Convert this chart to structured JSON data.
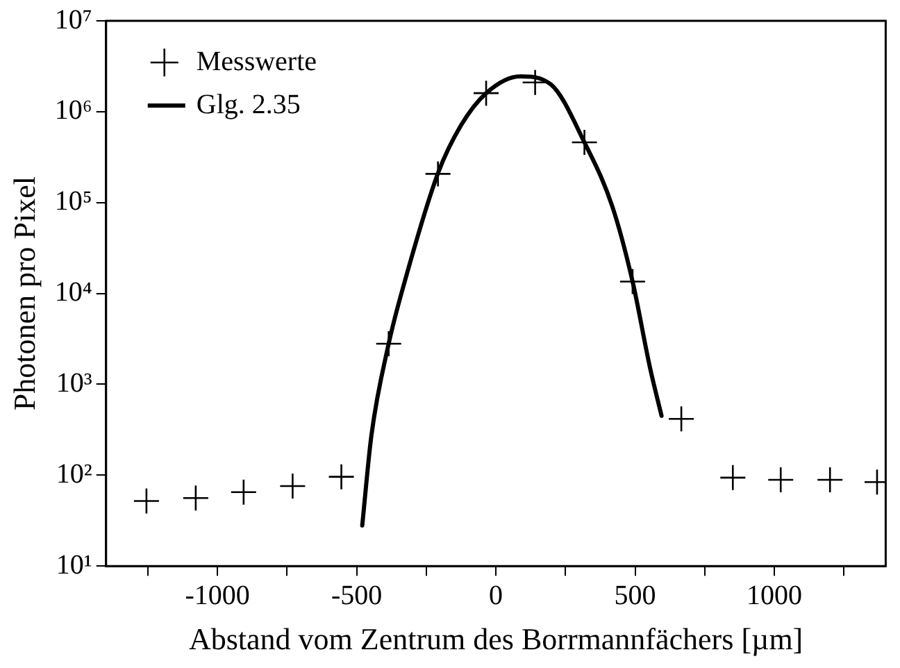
{
  "chart_data": {
    "type": "scatter",
    "xlabel": "Abstand vom Zentrum des Borrmannfächers [µm]",
    "ylabel": "Photonen pro Pixel",
    "series": [
      {
        "name": "Messwerte",
        "color": "#000000",
        "marker": "cross",
        "x": [
          -1255,
          -1078,
          -906,
          -730,
          -555,
          -385,
          -208,
          -35,
          141,
          318,
          491,
          666,
          851,
          1023,
          1200,
          1369
        ],
        "values": [
          52,
          56,
          65,
          76,
          96,
          2800,
          207000,
          1600000,
          2100000,
          460000,
          13500,
          417,
          94,
          89,
          89,
          84
        ]
      },
      {
        "name": "Glg. 2.35",
        "type": "line",
        "color": "#000000",
        "marker": "none",
        "line_style": "solid",
        "x": [
          -480,
          -447,
          -385,
          -329,
          -208,
          -125,
          -35,
          87,
          197,
          318,
          418,
          491,
          554,
          595
        ],
        "values": [
          28,
          275,
          2800,
          13000,
          210000,
          710000,
          1600000,
          2450000,
          2000000,
          460000,
          91000,
          13500,
          1500,
          450
        ]
      }
    ],
    "log": "y",
    "xlim": [
      -1400,
      1400
    ],
    "xticks": [
      {
        "value": -1250,
        "label": null
      },
      -1000,
      {
        "value": -750,
        "label": null
      },
      -500,
      {
        "value": -250,
        "label": null
      },
      0,
      {
        "value": 250,
        "label": null
      },
      500,
      {
        "value": 750,
        "label": null
      },
      1000,
      {
        "value": 1250,
        "label": null
      }
    ],
    "ylim": [
      10,
      10000000
    ],
    "yticks": [
      {
        "value": 10,
        "label": "10¹"
      },
      {
        "value": 100,
        "label": "10²"
      },
      {
        "value": 1000,
        "label": "10³"
      },
      {
        "value": 10000,
        "label": "10⁴"
      },
      {
        "value": 100000,
        "label": "10⁵"
      },
      {
        "value": 1000000,
        "label": "10⁶"
      },
      {
        "value": 10000000,
        "label": "10⁷"
      }
    ],
    "grid": false,
    "legend": "top left"
  }
}
